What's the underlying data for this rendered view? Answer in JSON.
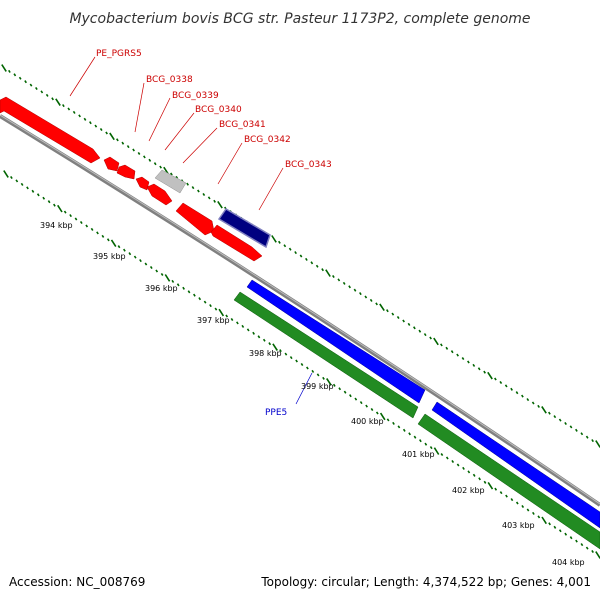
{
  "title": "Mycobacterium bovis BCG str. Pasteur 1173P2, complete genome",
  "footer": {
    "accession": "Accession: NC_008769",
    "topology": "Topology: circular; Length: 4,374,522 bp; Genes: 4,001"
  },
  "ticks": [
    "394 kbp",
    "395 kbp",
    "396 kbp",
    "397 kbp",
    "398 kbp",
    "399 kbp",
    "400 kbp",
    "401 kbp",
    "402 kbp",
    "403 kbp",
    "404 kbp"
  ],
  "labels": {
    "PE_PGRS5": "PE_PGRS5",
    "BCG_0338": "BCG_0338",
    "BCG_0339": "BCG_0339",
    "BCG_0340": "BCG_0340",
    "BCG_0341": "BCG_0341",
    "BCG_0342": "BCG_0342",
    "BCG_0343": "BCG_0343",
    "PPE5": "PPE5"
  },
  "colors": {
    "forward_gene": "#ff0000",
    "reverse_gene": "#0000ff",
    "pseudo_gene": "#c0c0c0",
    "selected_gene": "#000080",
    "rev_extra": "#228b22",
    "backbone": "#808080",
    "tick_marks": "#006400"
  }
}
